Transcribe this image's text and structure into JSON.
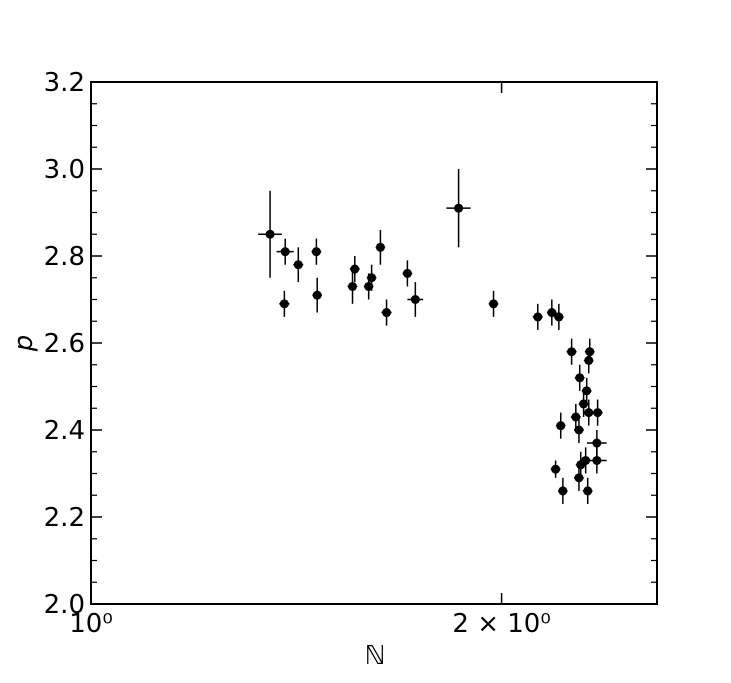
{
  "chart_data": {
    "type": "scatter",
    "xlabel": "ℕ",
    "ylabel": "p",
    "color": "#000000",
    "xscale": "log",
    "x": [
      1.353,
      1.388,
      1.386,
      1.419,
      1.463,
      1.465,
      1.561,
      1.555,
      1.598,
      1.606,
      1.63,
      1.647,
      1.706,
      1.729,
      1.86,
      1.973,
      2.126,
      2.177,
      2.203,
      2.251,
      2.321,
      2.317,
      2.282,
      2.309,
      2.297,
      2.267,
      2.317,
      2.352,
      2.279,
      2.21,
      2.349,
      2.286,
      2.305,
      2.349,
      2.191,
      2.279,
      2.218,
      2.313
    ],
    "values": [
      2.85,
      2.81,
      2.69,
      2.78,
      2.81,
      2.71,
      2.77,
      2.73,
      2.73,
      2.75,
      2.82,
      2.67,
      2.76,
      2.7,
      2.91,
      2.69,
      2.66,
      2.67,
      2.66,
      2.58,
      2.58,
      2.56,
      2.52,
      2.49,
      2.46,
      2.43,
      2.44,
      2.44,
      2.4,
      2.41,
      2.37,
      2.32,
      2.33,
      2.33,
      2.31,
      2.29,
      2.26,
      2.26
    ],
    "xerr": [
      0.027,
      0.02,
      0.012,
      0.012,
      0.012,
      0.012,
      0.013,
      0.013,
      0.013,
      0.013,
      0.013,
      0.014,
      0.014,
      0.023,
      0.038,
      0.016,
      0.018,
      0.018,
      0.018,
      0.019,
      0.019,
      0.019,
      0.019,
      0.019,
      0.019,
      0.019,
      0.019,
      0.02,
      0.019,
      0.018,
      0.039,
      0.019,
      0.019,
      0.039,
      0.018,
      0.019,
      0.018,
      0.019
    ],
    "yerr": [
      0.1,
      0.03,
      0.03,
      0.04,
      0.03,
      0.04,
      0.03,
      0.04,
      0.03,
      0.03,
      0.04,
      0.03,
      0.03,
      0.04,
      0.09,
      0.03,
      0.03,
      0.03,
      0.03,
      0.03,
      0.03,
      0.03,
      0.03,
      0.03,
      0.03,
      0.03,
      0.03,
      0.03,
      0.03,
      0.03,
      0.03,
      0.03,
      0.03,
      0.03,
      0.02,
      0.03,
      0.03,
      0.03
    ],
    "xlim": [
      1,
      2.6
    ],
    "ylim": [
      2.0,
      3.2
    ],
    "xticks": [
      {
        "value": 1,
        "label": "10⁰"
      },
      {
        "value": 2,
        "label": "2 × 10⁰"
      }
    ],
    "yticks": [
      {
        "value": 2.0,
        "label": "2.0"
      },
      2.2,
      2.4,
      2.6,
      2.8,
      {
        "value": 3.0,
        "label": "3.0"
      },
      3.2
    ],
    "yminorticks": [
      2.05,
      2.1,
      2.15,
      2.25,
      2.3,
      2.35,
      2.45,
      2.5,
      2.55,
      2.65,
      2.7,
      2.75,
      2.85,
      2.9,
      2.95,
      3.05,
      3.1,
      3.15
    ]
  }
}
